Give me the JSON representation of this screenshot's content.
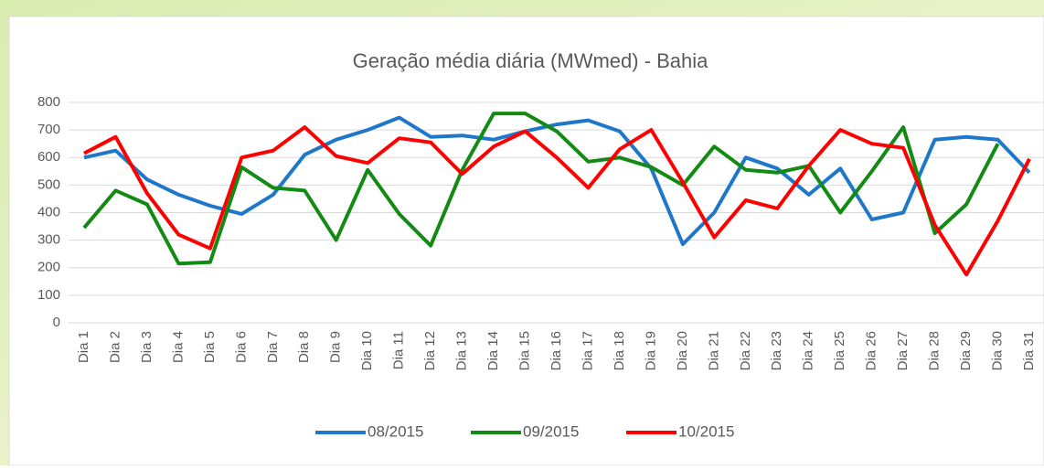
{
  "chart_data": {
    "type": "line",
    "title": "Geração média diária (MWmed) - Bahia",
    "categories": [
      "Dia 1",
      "Dia 2",
      "Dia 3",
      "Dia 4",
      "Dia 5",
      "Dia 6",
      "Dia 7",
      "Dia 8",
      "Dia 9",
      "Dia 10",
      "Dia 11",
      "Dia 12",
      "Dia 13",
      "Dia 14",
      "Dia 15",
      "Dia 16",
      "Dia 17",
      "Dia 18",
      "Dia 19",
      "Dia 20",
      "Dia 21",
      "Dia 22",
      "Dia 23",
      "Dia 24",
      "Dia 25",
      "Dia 26",
      "Dia 27",
      "Dia 28",
      "Dia 29",
      "Dia 30",
      "Dia 31"
    ],
    "series": [
      {
        "name": "08/2015",
        "color": "#1f77c9",
        "values": [
          600,
          625,
          520,
          465,
          425,
          395,
          465,
          610,
          665,
          700,
          745,
          675,
          680,
          665,
          695,
          720,
          735,
          695,
          560,
          285,
          400,
          600,
          560,
          465,
          560,
          375,
          400,
          665,
          675,
          665,
          545
        ]
      },
      {
        "name": "09/2015",
        "color": "#138a13",
        "values": [
          345,
          480,
          430,
          215,
          220,
          565,
          490,
          480,
          300,
          555,
          395,
          280,
          555,
          760,
          760,
          695,
          585,
          600,
          565,
          500,
          640,
          555,
          545,
          570,
          400,
          550,
          710,
          325,
          430,
          650,
          null
        ]
      },
      {
        "name": "10/2015",
        "color": "#ff0000",
        "values": [
          615,
          675,
          470,
          320,
          270,
          600,
          625,
          710,
          605,
          580,
          670,
          655,
          540,
          640,
          695,
          600,
          490,
          630,
          700,
          510,
          310,
          445,
          415,
          570,
          700,
          650,
          635,
          355,
          175,
          370,
          595
        ]
      }
    ],
    "ylim": [
      0,
      800
    ],
    "yticks": [
      0,
      100,
      200,
      300,
      400,
      500,
      600,
      700,
      800
    ],
    "grid": true,
    "legend": "bottom"
  }
}
